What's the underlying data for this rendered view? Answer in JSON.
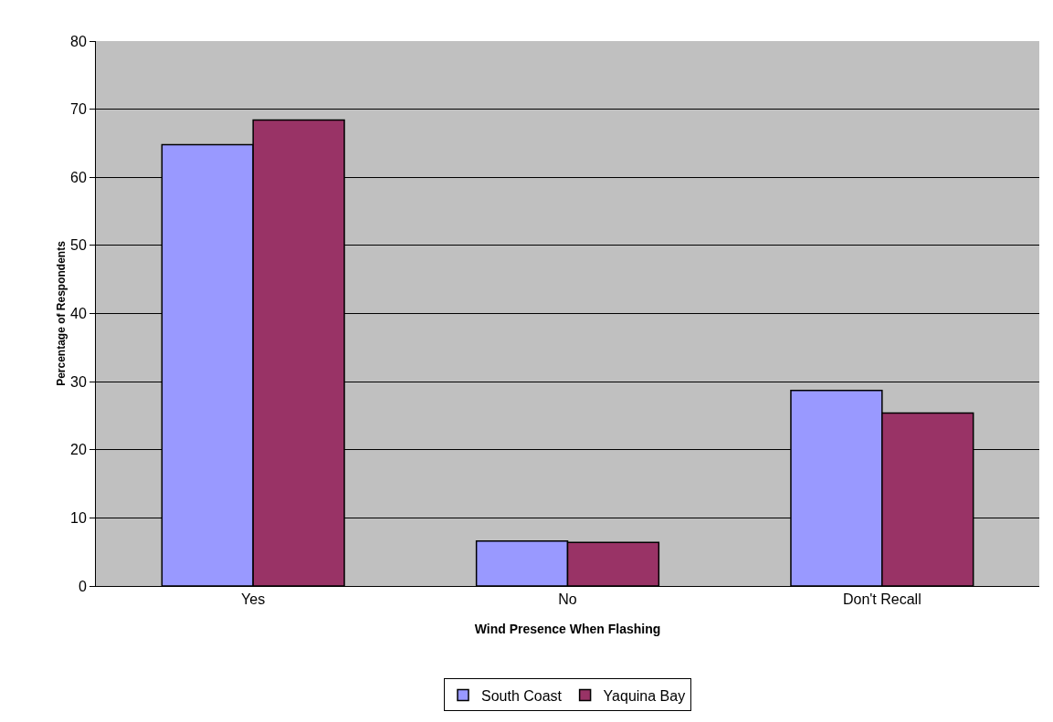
{
  "chart_data": {
    "type": "bar",
    "xlabel": "Wind Presence When Flashing",
    "ylabel": "Percentage of Respondents",
    "categories": [
      "Yes",
      "No",
      "Don't Recall"
    ],
    "series": [
      {
        "name": "South Coast",
        "color": "#9999ff",
        "values": [
          64.8,
          6.6,
          28.7
        ]
      },
      {
        "name": "Yaquina Bay",
        "color": "#993366",
        "values": [
          68.4,
          6.4,
          25.4
        ]
      }
    ],
    "ylim": [
      0,
      80
    ],
    "yticks": [
      0,
      10,
      20,
      30,
      40,
      50,
      60,
      70,
      80
    ],
    "grid": "y",
    "legend": "bottom"
  }
}
